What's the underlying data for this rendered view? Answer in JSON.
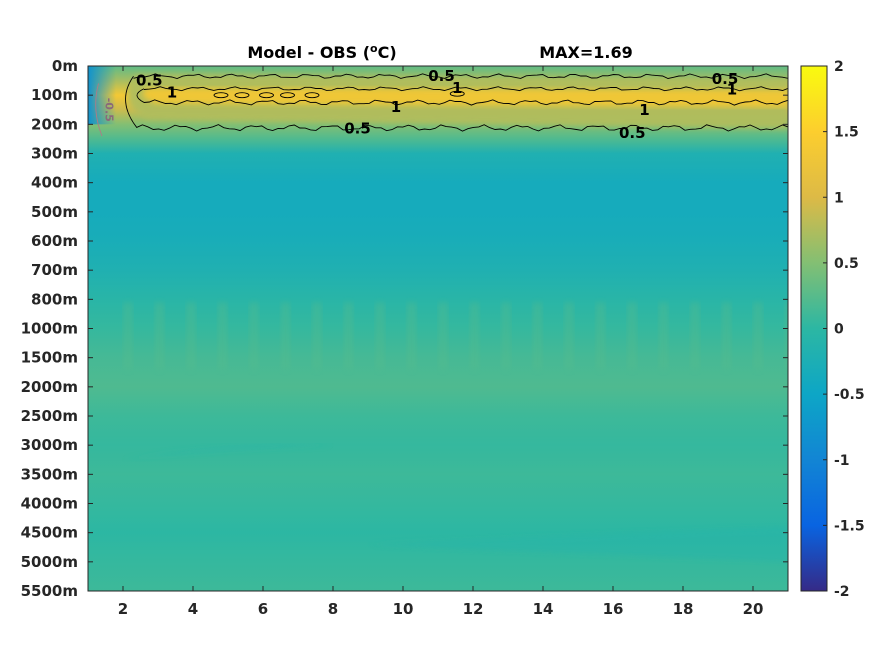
{
  "chart_data": {
    "type": "heatmap",
    "title": "Model - OBS (°C)",
    "title_parts": {
      "prefix": "Model - OBS (",
      "superscript": "o",
      "suffix": "C)"
    },
    "max_annotation": "MAX=1.69",
    "max_value": 1.69,
    "xlim": [
      1,
      21
    ],
    "x_ticks": [
      2,
      4,
      6,
      8,
      10,
      12,
      14,
      16,
      18,
      20
    ],
    "x_tick_labels": [
      "2",
      "4",
      "6",
      "8",
      "10",
      "12",
      "14",
      "16",
      "18",
      "20"
    ],
    "y_tick_labels": [
      "0m",
      "100m",
      "200m",
      "300m",
      "400m",
      "500m",
      "600m",
      "700m",
      "800m",
      "1000m",
      "1500m",
      "2000m",
      "2500m",
      "3000m",
      "3500m",
      "4000m",
      "4500m",
      "5000m",
      "5500m"
    ],
    "y_levels_m": [
      0,
      100,
      200,
      300,
      400,
      500,
      600,
      700,
      800,
      1000,
      1500,
      2000,
      2500,
      3000,
      3500,
      4000,
      4500,
      5000,
      5500
    ],
    "colorbar": {
      "range": [
        -2,
        2
      ],
      "ticks": [
        2,
        1.5,
        1,
        0.5,
        0,
        -0.5,
        -1,
        -1.5,
        -2
      ],
      "tick_labels": [
        "2",
        "1.5",
        "1",
        "0.5",
        "0",
        "-0.5",
        "-1",
        "-1.5",
        "-2"
      ],
      "colormap": "parula"
    },
    "contour_levels": [
      0.5,
      1,
      -0.5
    ],
    "contour_labels": [
      {
        "text": "0.5",
        "x": 2.75,
        "depth_m": 50
      },
      {
        "text": "1",
        "x": 3.4,
        "depth_m": 90
      },
      {
        "text": "0.5",
        "x": 11.1,
        "depth_m": 35
      },
      {
        "text": "1",
        "x": 11.55,
        "depth_m": 75
      },
      {
        "text": "0.5",
        "x": 19.2,
        "depth_m": 45
      },
      {
        "text": "1",
        "x": 19.4,
        "depth_m": 80
      },
      {
        "text": "1",
        "x": 9.8,
        "depth_m": 140
      },
      {
        "text": "1",
        "x": 16.9,
        "depth_m": 150
      },
      {
        "text": "0.5",
        "x": 8.7,
        "depth_m": 215
      },
      {
        "text": "0.5",
        "x": 16.55,
        "depth_m": 230
      }
    ],
    "negative_contour_label": {
      "text": "-0.5",
      "x": 1.5,
      "depth_m": 150
    },
    "depth_profile": [
      {
        "depth_m": 0,
        "value": 0.3
      },
      {
        "depth_m": 50,
        "value": 0.7
      },
      {
        "depth_m": 100,
        "value": 1.35
      },
      {
        "depth_m": 150,
        "value": 0.9
      },
      {
        "depth_m": 200,
        "value": 0.5
      },
      {
        "depth_m": 250,
        "value": 0.2
      },
      {
        "depth_m": 300,
        "value": -0.2
      },
      {
        "depth_m": 400,
        "value": -0.35
      },
      {
        "depth_m": 500,
        "value": -0.35
      },
      {
        "depth_m": 600,
        "value": -0.3
      },
      {
        "depth_m": 700,
        "value": -0.2
      },
      {
        "depth_m": 800,
        "value": -0.05
      },
      {
        "depth_m": 1000,
        "value": 0.05
      },
      {
        "depth_m": 1500,
        "value": 0.15
      },
      {
        "depth_m": 2000,
        "value": 0.2
      },
      {
        "depth_m": 2500,
        "value": 0.1
      },
      {
        "depth_m": 3000,
        "value": 0.05
      },
      {
        "depth_m": 3500,
        "value": 0.1
      },
      {
        "depth_m": 4000,
        "value": 0.05
      },
      {
        "depth_m": 4500,
        "value": 0.0
      },
      {
        "depth_m": 5000,
        "value": 0.05
      },
      {
        "depth_m": 5500,
        "value": 0.1
      }
    ],
    "left_edge_anomaly": {
      "x_range": [
        1,
        1.8
      ],
      "depth_range_m": [
        0,
        200
      ],
      "value": -0.8
    }
  }
}
